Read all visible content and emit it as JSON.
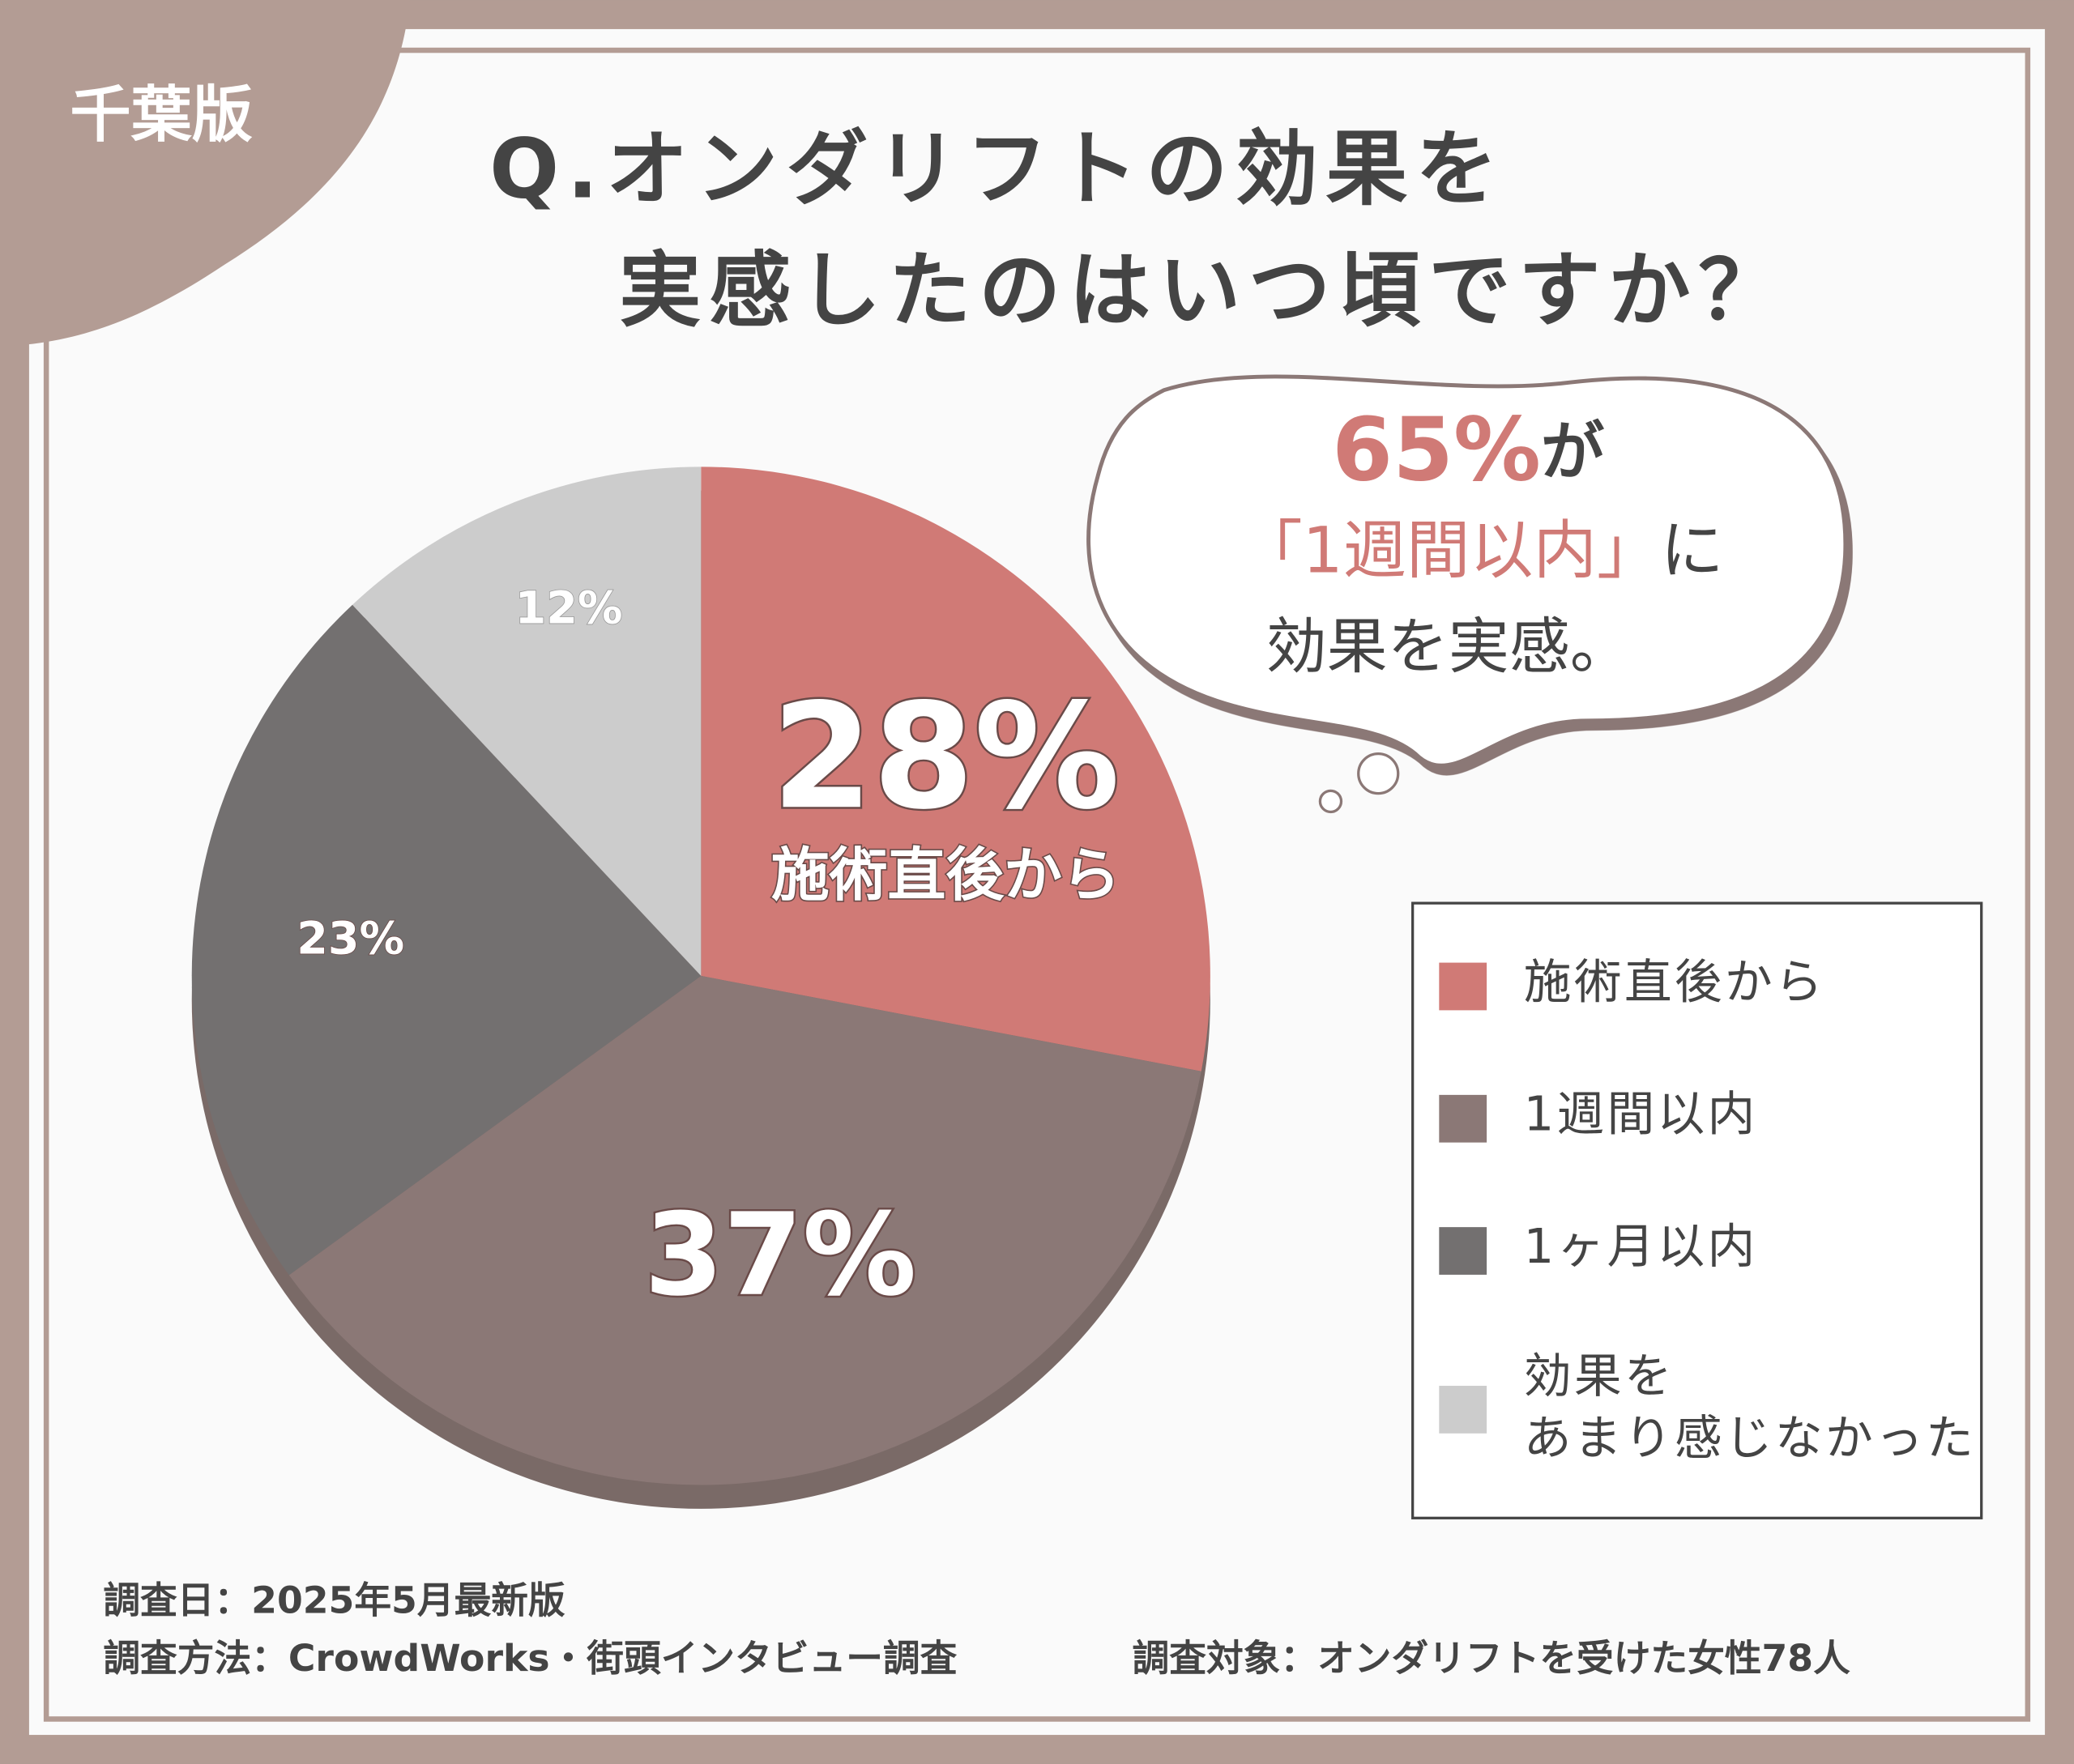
{
  "badge": "千葉版",
  "chart_data": {
    "type": "pie",
    "title": [
      "Q.オンダリフトの効果を",
      "実感したのはいつ頃ですか？"
    ],
    "categories": [
      "施術直後から",
      "1週間以内",
      "1ヶ月以内",
      "効果を\nあまり感じなかった"
    ],
    "values": [
      28,
      37,
      23,
      12
    ],
    "value_labels": [
      "28%",
      "37%",
      "23%",
      "12%"
    ],
    "colors": [
      "#d07a76",
      "#8b7876",
      "#737070",
      "#cccccc"
    ],
    "legend": "right"
  },
  "callout": [
    "65%",
    "が",
    "「1週間以内」",
    "に",
    "効果を実感。"
  ],
  "footer": [
    "調査日：2025年5月最新版",
    "調査方法：CrowdWorks・街頭インタビュー調査",
    "調査対象：オンダリフトを受けた女性78人"
  ]
}
